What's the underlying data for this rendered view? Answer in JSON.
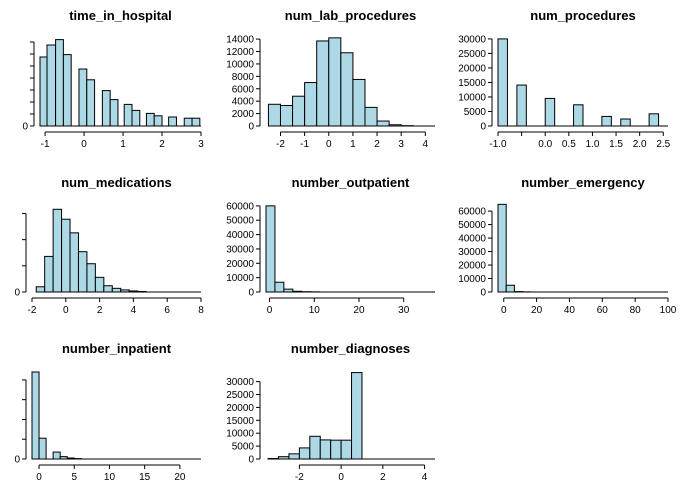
{
  "chart_data": [
    {
      "type": "bar",
      "title": "time_in_hospital",
      "xlabel": "",
      "ylabel": "",
      "xlim": [
        -1.13,
        3.0
      ],
      "xticks": [
        -1,
        0,
        1,
        2,
        3
      ],
      "ylim": [
        0,
        7500
      ],
      "yticks": [
        0,
        1000,
        2000,
        3000,
        4000,
        5000,
        6000,
        7000
      ],
      "ytick_labels": [
        "0",
        "",
        "",
        "",
        "",
        "",
        "",
        ""
      ],
      "bins": [
        [
          -1.13,
          -0.95,
          5750
        ],
        [
          -0.95,
          -0.73,
          6750
        ],
        [
          -0.73,
          -0.53,
          7200
        ],
        [
          -0.53,
          -0.33,
          5950
        ],
        [
          -0.13,
          0.07,
          4750
        ],
        [
          0.07,
          0.27,
          3850
        ],
        [
          0.47,
          0.67,
          2950
        ],
        [
          0.67,
          0.87,
          2200
        ],
        [
          1.03,
          1.23,
          1800
        ],
        [
          1.23,
          1.43,
          1300
        ],
        [
          1.6,
          1.8,
          1050
        ],
        [
          1.8,
          2.0,
          850
        ],
        [
          2.17,
          2.37,
          750
        ],
        [
          2.57,
          2.77,
          650
        ],
        [
          2.77,
          2.97,
          650
        ]
      ]
    },
    {
      "type": "bar",
      "title": "num_lab_procedures",
      "xlabel": "",
      "ylabel": "",
      "xlim": [
        -2.6,
        4.4
      ],
      "xticks": [
        -2,
        -1,
        0,
        1,
        2,
        3,
        4
      ],
      "ylim": [
        0,
        14500
      ],
      "yticks": [
        0,
        2000,
        4000,
        6000,
        8000,
        10000,
        12000,
        14000
      ],
      "ytick_labels": [
        "0",
        "2000",
        "4000",
        "6000",
        "8000",
        "10000",
        "12000",
        "14000"
      ],
      "bins": [
        [
          -2.5,
          -2.0,
          3500
        ],
        [
          -2.0,
          -1.5,
          3300
        ],
        [
          -1.5,
          -1.0,
          4800
        ],
        [
          -1.0,
          -0.5,
          7000
        ],
        [
          -0.5,
          0.0,
          13700
        ],
        [
          0.0,
          0.5,
          14200
        ],
        [
          0.5,
          1.0,
          11800
        ],
        [
          1.0,
          1.5,
          7500
        ],
        [
          1.5,
          2.0,
          3000
        ],
        [
          2.0,
          2.5,
          800
        ],
        [
          2.5,
          3.0,
          200
        ],
        [
          3.0,
          3.5,
          50
        ]
      ]
    },
    {
      "type": "bar",
      "title": "num_procedures",
      "xlabel": "",
      "ylabel": "",
      "xlim": [
        -1.0,
        2.6
      ],
      "xticks": [
        -1.0,
        -0.5,
        0.0,
        0.5,
        1.0,
        1.5,
        2.0,
        2.5
      ],
      "xtick_labels": [
        "-1.0",
        "",
        "0.0",
        "0.5",
        "1.0",
        "1.5",
        "2.0",
        "2.5"
      ],
      "ylim": [
        0,
        31000
      ],
      "yticks": [
        0,
        5000,
        10000,
        15000,
        20000,
        25000,
        30000
      ],
      "ytick_labels": [
        "0",
        "5000",
        "10000",
        "15000",
        "20000",
        "25000",
        "30000"
      ],
      "bins": [
        [
          -1.0,
          -0.8,
          30000
        ],
        [
          -0.8,
          -0.6,
          0
        ],
        [
          -0.6,
          -0.4,
          14100
        ],
        [
          -0.4,
          -0.2,
          0
        ],
        [
          -0.2,
          0.0,
          0
        ],
        [
          0.0,
          0.2,
          9500
        ],
        [
          0.2,
          0.4,
          0
        ],
        [
          0.4,
          0.6,
          0
        ],
        [
          0.6,
          0.8,
          7300
        ],
        [
          0.8,
          1.0,
          0
        ],
        [
          1.0,
          1.2,
          0
        ],
        [
          1.2,
          1.4,
          3300
        ],
        [
          1.4,
          1.6,
          0
        ],
        [
          1.6,
          1.8,
          2400
        ],
        [
          1.8,
          2.0,
          0
        ],
        [
          2.0,
          2.2,
          0
        ],
        [
          2.2,
          2.4,
          4200
        ]
      ]
    },
    {
      "type": "bar",
      "title": "num_medications",
      "xlabel": "",
      "ylabel": "",
      "xlim": [
        -2.0,
        8.0
      ],
      "xticks": [
        -2,
        0,
        2,
        4,
        6,
        8
      ],
      "ylim": [
        0,
        17000
      ],
      "yticks": [
        0,
        5000,
        10000,
        15000
      ],
      "ytick_labels": [
        "0",
        "",
        "",
        ""
      ],
      "bins": [
        [
          -1.75,
          -1.25,
          1000
        ],
        [
          -1.25,
          -0.75,
          6800
        ],
        [
          -0.75,
          -0.25,
          15800
        ],
        [
          -0.25,
          0.25,
          13900
        ],
        [
          0.25,
          0.75,
          11300
        ],
        [
          0.75,
          1.25,
          7700
        ],
        [
          1.25,
          1.75,
          5400
        ],
        [
          1.75,
          2.25,
          2800
        ],
        [
          2.25,
          2.75,
          1200
        ],
        [
          2.75,
          3.25,
          700
        ],
        [
          3.25,
          3.75,
          400
        ],
        [
          3.75,
          4.25,
          200
        ],
        [
          4.25,
          4.75,
          100
        ]
      ]
    },
    {
      "type": "bar",
      "title": "number_outpatient",
      "xlabel": "",
      "ylabel": "",
      "xlim": [
        -0.8,
        37.0
      ],
      "xticks": [
        0,
        10,
        20,
        30
      ],
      "ylim": [
        0,
        62000
      ],
      "yticks": [
        0,
        10000,
        20000,
        30000,
        40000,
        50000,
        60000
      ],
      "ytick_labels": [
        "0",
        "10000",
        "20000",
        "30000",
        "40000",
        "50000",
        "60000"
      ],
      "bins": [
        [
          -0.8,
          1.2,
          60000
        ],
        [
          1.2,
          3.2,
          6800
        ],
        [
          3.2,
          5.2,
          2000
        ],
        [
          5.2,
          7.2,
          500
        ],
        [
          7.2,
          9.2,
          200
        ],
        [
          9.2,
          11.2,
          100
        ],
        [
          11.2,
          37.0,
          0
        ]
      ]
    },
    {
      "type": "bar",
      "title": "number_emergency",
      "xlabel": "",
      "ylabel": "",
      "xlim": [
        -3.5,
        100.0
      ],
      "xticks": [
        0,
        20,
        40,
        60,
        80,
        100
      ],
      "ylim": [
        0,
        66000
      ],
      "yticks": [
        0,
        10000,
        20000,
        30000,
        40000,
        50000,
        60000
      ],
      "ytick_labels": [
        "0",
        "10000",
        "20000",
        "30000",
        "40000",
        "50000",
        "60000"
      ],
      "bins": [
        [
          -3.5,
          1.5,
          65000
        ],
        [
          1.5,
          6.5,
          5000
        ],
        [
          6.5,
          11.5,
          300
        ],
        [
          11.5,
          16.5,
          100
        ],
        [
          16.5,
          100.0,
          0
        ]
      ]
    },
    {
      "type": "bar",
      "title": "number_inpatient",
      "xlabel": "",
      "ylabel": "",
      "xlim": [
        -1.0,
        23.0
      ],
      "xticks": [
        0,
        5,
        10,
        15,
        20
      ],
      "ylim": [
        0,
        45000
      ],
      "yticks": [
        0,
        10000,
        20000,
        30000,
        40000
      ],
      "ytick_labels": [
        "0",
        "",
        "",
        "",
        ""
      ],
      "bins": [
        [
          -1.0,
          0.0,
          44000
        ],
        [
          0.0,
          1.0,
          10500
        ],
        [
          1.0,
          2.0,
          0
        ],
        [
          2.0,
          3.0,
          3500
        ],
        [
          3.0,
          4.0,
          1200
        ],
        [
          4.0,
          5.0,
          500
        ],
        [
          5.0,
          6.0,
          200
        ],
        [
          6.0,
          23.0,
          0
        ]
      ]
    },
    {
      "type": "bar",
      "title": "number_diagnoses",
      "xlabel": "",
      "ylabel": "",
      "xlim": [
        -3.6,
        4.5
      ],
      "xticks": [
        -2,
        0,
        2,
        4
      ],
      "ylim": [
        0,
        34500
      ],
      "yticks": [
        0,
        5000,
        10000,
        15000,
        20000,
        25000,
        30000
      ],
      "ytick_labels": [
        "0",
        "5000",
        "10000",
        "15000",
        "20000",
        "25000",
        "30000"
      ],
      "bins": [
        [
          -3.5,
          -3.0,
          200
        ],
        [
          -3.0,
          -2.5,
          900
        ],
        [
          -2.5,
          -2.0,
          2000
        ],
        [
          -2.0,
          -1.5,
          4300
        ],
        [
          -1.5,
          -1.0,
          8800
        ],
        [
          -1.0,
          -0.5,
          7400
        ],
        [
          -0.5,
          0.0,
          7300
        ],
        [
          0.0,
          0.5,
          7300
        ],
        [
          0.5,
          1.0,
          33500
        ],
        [
          1.0,
          1.5,
          0
        ]
      ]
    }
  ]
}
